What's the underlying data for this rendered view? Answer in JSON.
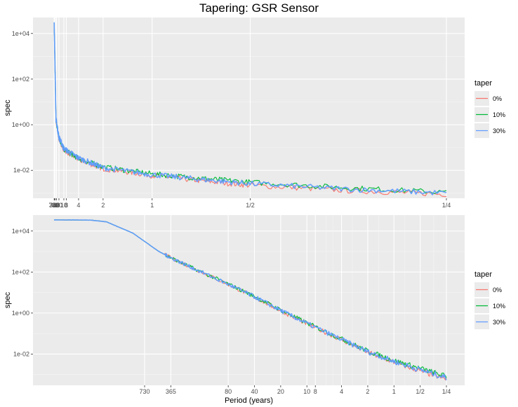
{
  "title": "Tapering: GSR Sensor",
  "legend": {
    "title": "taper",
    "colors": [
      "#F8766D",
      "#00BA38",
      "#619CFF"
    ]
  },
  "chart_data": [
    {
      "type": "line",
      "panel": "top",
      "xlabel": "",
      "ylabel": "spec",
      "y_scale": "log10",
      "ylim": [
        0.0006,
        50000
      ],
      "y_ticks": [
        "1e+04",
        "1e+02",
        "1e+00",
        "1e-02"
      ],
      "x_axis": "reciprocal frequency (period), linear in frequency",
      "x_ticks": [
        "730",
        "365",
        "80",
        "40",
        "20",
        "10",
        "8",
        "4",
        "2",
        "1",
        "1/2",
        "1/4"
      ],
      "series": [
        {
          "name": "0%",
          "color": "#F8766D",
          "points": [
            [
              0.0014,
              30000
            ],
            [
              0.02,
              1.5
            ],
            [
              0.05,
              0.25
            ],
            [
              0.1,
              0.08
            ],
            [
              0.25,
              0.03
            ],
            [
              0.5,
              0.012
            ],
            [
              1,
              0.006
            ],
            [
              1.5,
              0.0035
            ],
            [
              2,
              0.0022
            ],
            [
              3,
              0.0013
            ],
            [
              4,
              0.0009
            ]
          ]
        },
        {
          "name": "10%",
          "color": "#00BA38",
          "points": [
            [
              0.0014,
              30000
            ],
            [
              0.02,
              1.6
            ],
            [
              0.05,
              0.27
            ],
            [
              0.1,
              0.085
            ],
            [
              0.25,
              0.033
            ],
            [
              0.5,
              0.014
            ],
            [
              1,
              0.007
            ],
            [
              1.5,
              0.0045
            ],
            [
              2,
              0.003
            ],
            [
              3,
              0.0017
            ],
            [
              4,
              0.0011
            ]
          ]
        },
        {
          "name": "30%",
          "color": "#619CFF",
          "points": [
            [
              0.0014,
              30000
            ],
            [
              0.02,
              1.7
            ],
            [
              0.05,
              0.28
            ],
            [
              0.1,
              0.09
            ],
            [
              0.25,
              0.035
            ],
            [
              0.5,
              0.013
            ],
            [
              1,
              0.0065
            ],
            [
              1.5,
              0.004
            ],
            [
              2,
              0.0026
            ],
            [
              3,
              0.0015
            ],
            [
              4,
              0.001
            ]
          ]
        }
      ]
    },
    {
      "type": "line",
      "panel": "bottom",
      "xlabel": "Period (years)",
      "ylabel": "spec",
      "y_scale": "log10",
      "ylim": [
        0.0003,
        60000
      ],
      "y_ticks": [
        "1e+04",
        "1e+02",
        "1e+00",
        "1e-02"
      ],
      "x_axis": "period in years, log scale (reversed)",
      "x_ticks": [
        "730",
        "365",
        "80",
        "40",
        "20",
        "10",
        "8",
        "4",
        "2",
        "1",
        "1/2",
        "1/4"
      ],
      "series": [
        {
          "name": "0%",
          "color": "#F8766D",
          "points": [
            [
              8000,
              35000
            ],
            [
              3000,
              34000
            ],
            [
              2000,
              28000
            ],
            [
              1000,
              8000
            ],
            [
              500,
              1000
            ],
            [
              365,
              500
            ],
            [
              200,
              150
            ],
            [
              80,
              25
            ],
            [
              40,
              6
            ],
            [
              20,
              1.3
            ],
            [
              10,
              0.3
            ],
            [
              4,
              0.05
            ],
            [
              2,
              0.012
            ],
            [
              1,
              0.004
            ],
            [
              0.5,
              0.0015
            ],
            [
              0.25,
              0.0006
            ]
          ]
        },
        {
          "name": "10%",
          "color": "#00BA38",
          "points": [
            [
              8000,
              35000
            ],
            [
              3000,
              34000
            ],
            [
              2000,
              28000
            ],
            [
              1000,
              8000
            ],
            [
              500,
              1000
            ],
            [
              365,
              500
            ],
            [
              200,
              150
            ],
            [
              80,
              26
            ],
            [
              40,
              6.5
            ],
            [
              20,
              1.4
            ],
            [
              10,
              0.33
            ],
            [
              4,
              0.055
            ],
            [
              2,
              0.014
            ],
            [
              1,
              0.0048
            ],
            [
              0.5,
              0.002
            ],
            [
              0.25,
              0.0008
            ]
          ]
        },
        {
          "name": "30%",
          "color": "#619CFF",
          "points": [
            [
              8000,
              35000
            ],
            [
              3000,
              34000
            ],
            [
              2000,
              28000
            ],
            [
              1000,
              8000
            ],
            [
              500,
              1000
            ],
            [
              365,
              500
            ],
            [
              200,
              150
            ],
            [
              80,
              25
            ],
            [
              40,
              6.2
            ],
            [
              20,
              1.35
            ],
            [
              10,
              0.31
            ],
            [
              4,
              0.052
            ],
            [
              2,
              0.013
            ],
            [
              1,
              0.0044
            ],
            [
              0.5,
              0.0017
            ],
            [
              0.25,
              0.0007
            ]
          ]
        }
      ]
    }
  ]
}
